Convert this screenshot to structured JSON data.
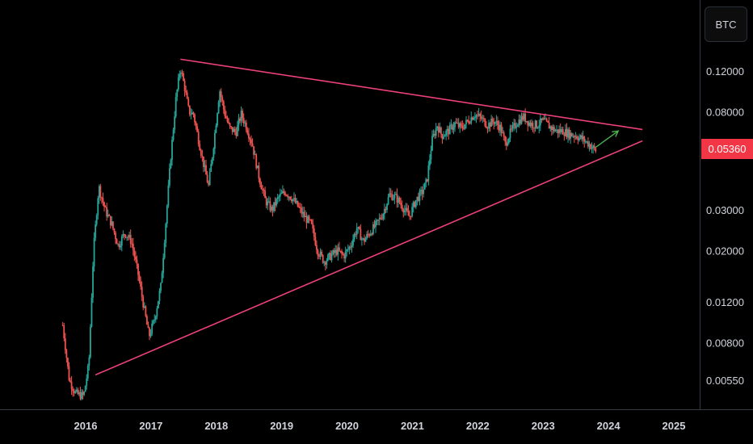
{
  "currency_button": {
    "label": "BTC"
  },
  "current_price": {
    "label": "0.05360",
    "color": "#f23645"
  },
  "colors": {
    "up": "#26a69a",
    "down": "#ef5350",
    "trendline": "#ec407a",
    "arrow": "#4caf50",
    "text": "#d1d4dc",
    "axis_line": "#363a45"
  },
  "chart_data": {
    "type": "candlestick",
    "title": "",
    "y_scale": "log",
    "ylim": [
      0.0045,
      0.17
    ],
    "xlim": [
      2015.2,
      2025.3
    ],
    "grid": false,
    "y_ticks": [
      "0.12000",
      "0.08000",
      "0.03000",
      "0.02000",
      "0.01200",
      "0.00800",
      "0.00550"
    ],
    "x_ticks": [
      "2016",
      "2017",
      "2018",
      "2019",
      "2020",
      "2021",
      "2022",
      "2023",
      "2024",
      "2025"
    ],
    "price_path": [
      [
        2015.65,
        0.0095
      ],
      [
        2015.75,
        0.0055
      ],
      [
        2015.85,
        0.0048
      ],
      [
        2015.97,
        0.0047
      ],
      [
        2016.05,
        0.0065
      ],
      [
        2016.12,
        0.02
      ],
      [
        2016.2,
        0.038
      ],
      [
        2016.3,
        0.03
      ],
      [
        2016.4,
        0.026
      ],
      [
        2016.5,
        0.021
      ],
      [
        2016.6,
        0.024
      ],
      [
        2016.7,
        0.022
      ],
      [
        2016.8,
        0.016
      ],
      [
        2016.9,
        0.011
      ],
      [
        2016.97,
        0.0085
      ],
      [
        2017.05,
        0.01
      ],
      [
        2017.15,
        0.014
      ],
      [
        2017.22,
        0.025
      ],
      [
        2017.3,
        0.05
      ],
      [
        2017.38,
        0.09
      ],
      [
        2017.45,
        0.125
      ],
      [
        2017.52,
        0.1
      ],
      [
        2017.58,
        0.08
      ],
      [
        2017.65,
        0.078
      ],
      [
        2017.72,
        0.062
      ],
      [
        2017.8,
        0.048
      ],
      [
        2017.88,
        0.038
      ],
      [
        2017.95,
        0.055
      ],
      [
        2018.05,
        0.1
      ],
      [
        2018.12,
        0.08
      ],
      [
        2018.2,
        0.068
      ],
      [
        2018.3,
        0.065
      ],
      [
        2018.38,
        0.078
      ],
      [
        2018.45,
        0.07
      ],
      [
        2018.55,
        0.058
      ],
      [
        2018.65,
        0.042
      ],
      [
        2018.75,
        0.033
      ],
      [
        2018.85,
        0.03
      ],
      [
        2018.95,
        0.034
      ],
      [
        2019.05,
        0.036
      ],
      [
        2019.15,
        0.034
      ],
      [
        2019.25,
        0.031
      ],
      [
        2019.35,
        0.028
      ],
      [
        2019.45,
        0.026
      ],
      [
        2019.55,
        0.02
      ],
      [
        2019.65,
        0.018
      ],
      [
        2019.75,
        0.019
      ],
      [
        2019.85,
        0.02
      ],
      [
        2019.95,
        0.019
      ],
      [
        2020.05,
        0.021
      ],
      [
        2020.15,
        0.025
      ],
      [
        2020.25,
        0.022
      ],
      [
        2020.35,
        0.024
      ],
      [
        2020.45,
        0.026
      ],
      [
        2020.55,
        0.029
      ],
      [
        2020.65,
        0.035
      ],
      [
        2020.75,
        0.034
      ],
      [
        2020.85,
        0.031
      ],
      [
        2020.95,
        0.028
      ],
      [
        2021.05,
        0.033
      ],
      [
        2021.15,
        0.036
      ],
      [
        2021.22,
        0.04
      ],
      [
        2021.3,
        0.06
      ],
      [
        2021.38,
        0.07
      ],
      [
        2021.45,
        0.063
      ],
      [
        2021.55,
        0.066
      ],
      [
        2021.65,
        0.071
      ],
      [
        2021.75,
        0.068
      ],
      [
        2021.85,
        0.073
      ],
      [
        2021.95,
        0.078
      ],
      [
        2022.05,
        0.075
      ],
      [
        2022.15,
        0.07
      ],
      [
        2022.25,
        0.073
      ],
      [
        2022.35,
        0.068
      ],
      [
        2022.42,
        0.058
      ],
      [
        2022.5,
        0.065
      ],
      [
        2022.6,
        0.072
      ],
      [
        2022.7,
        0.076
      ],
      [
        2022.8,
        0.071
      ],
      [
        2022.9,
        0.07
      ],
      [
        2023.0,
        0.073
      ],
      [
        2023.1,
        0.069
      ],
      [
        2023.2,
        0.066
      ],
      [
        2023.3,
        0.066
      ],
      [
        2023.4,
        0.064
      ],
      [
        2023.5,
        0.063
      ],
      [
        2023.6,
        0.061
      ],
      [
        2023.7,
        0.058
      ],
      [
        2023.78,
        0.055
      ],
      [
        2023.82,
        0.0536
      ]
    ],
    "annotations": {
      "upper_trendline": [
        [
          2017.45,
          0.135
        ],
        [
          2024.52,
          0.067
        ]
      ],
      "lower_trendline": [
        [
          2016.15,
          0.0058
        ],
        [
          2024.52,
          0.0598
        ]
      ],
      "arrow": [
        [
          2023.8,
          0.056
        ],
        [
          2024.15,
          0.066
        ]
      ]
    }
  }
}
